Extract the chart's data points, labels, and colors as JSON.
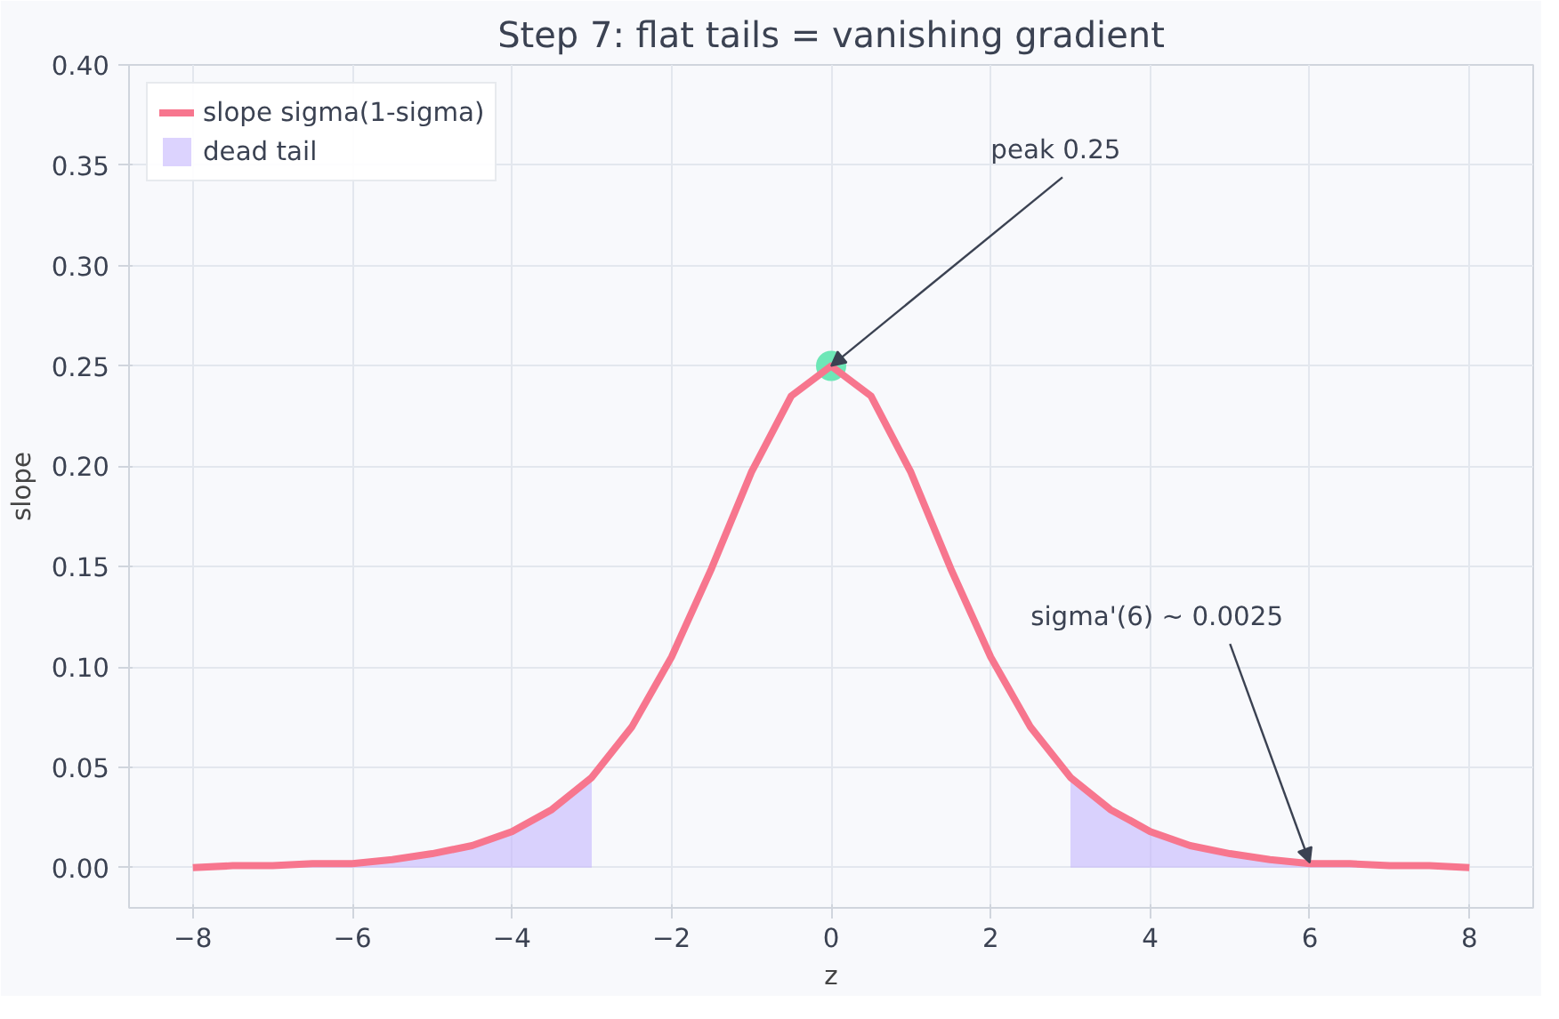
{
  "chart_data": {
    "type": "line",
    "title": "Step 7: flat tails = vanishing gradient",
    "xlabel": "z",
    "ylabel": "slope",
    "xlim": [
      -8.8,
      8.8
    ],
    "ylim": [
      -0.02,
      0.4
    ],
    "xticks": [
      {
        "value": -8,
        "label": "−8"
      },
      {
        "value": -6,
        "label": "−6"
      },
      {
        "value": -4,
        "label": "−4"
      },
      {
        "value": -2,
        "label": "−2"
      },
      0,
      2,
      4,
      6,
      8
    ],
    "yticks": [
      {
        "value": 0,
        "label": "0.00"
      },
      {
        "value": 0.05,
        "label": "0.05"
      },
      {
        "value": 0.1,
        "label": "0.10"
      },
      {
        "value": 0.15,
        "label": "0.15"
      },
      {
        "value": 0.2,
        "label": "0.20"
      },
      {
        "value": 0.25,
        "label": "0.25"
      },
      {
        "value": 0.3,
        "label": "0.30"
      },
      {
        "value": 0.35,
        "label": "0.35"
      },
      {
        "value": 0.4,
        "label": "0.40"
      }
    ],
    "grid": true,
    "legend": "top left",
    "series": [
      {
        "name": "slope sigma(1-sigma)",
        "color": "#f7768e",
        "x": [
          -8,
          -7.5,
          -7,
          -6.5,
          -6,
          -5.5,
          -5,
          -4.5,
          -4,
          -3.5,
          -3,
          -2.5,
          -2,
          -1.5,
          -1,
          -0.5,
          0,
          0.5,
          1,
          1.5,
          2,
          2.5,
          3,
          3.5,
          4,
          4.5,
          5,
          5.5,
          6,
          6.5,
          7,
          7.5,
          8
        ],
        "values": [
          0.0,
          0.001,
          0.001,
          0.002,
          0.002,
          0.004,
          0.007,
          0.011,
          0.018,
          0.029,
          0.045,
          0.07,
          0.105,
          0.149,
          0.197,
          0.235,
          0.25,
          0.235,
          0.197,
          0.149,
          0.105,
          0.07,
          0.045,
          0.029,
          0.018,
          0.011,
          0.007,
          0.004,
          0.002,
          0.002,
          0.001,
          0.001,
          0.0
        ]
      },
      {
        "type": "area",
        "name": "dead tail",
        "color": "#c4b5fd",
        "x": [
          -8,
          -7.5,
          -7,
          -6.5,
          -6,
          -5.5,
          -5,
          -4.5,
          -4,
          -3.5,
          -3
        ],
        "values": [
          0.0,
          0.001,
          0.001,
          0.002,
          0.002,
          0.004,
          0.007,
          0.011,
          0.018,
          0.029,
          0.045
        ]
      },
      {
        "type": "area",
        "color": "#c4b5fd",
        "x": [
          3,
          3.5,
          4,
          4.5,
          5,
          5.5,
          6,
          6.5,
          7,
          7.5,
          8
        ],
        "values": [
          0.045,
          0.029,
          0.018,
          0.011,
          0.007,
          0.004,
          0.002,
          0.002,
          0.001,
          0.001,
          0.0
        ]
      },
      {
        "type": "scatter",
        "color": "#6ee7b7",
        "x": [
          0
        ],
        "values": [
          0.25
        ]
      }
    ],
    "annotations": [
      {
        "text": "peak 0.25",
        "x": 0,
        "y": 0.25
      },
      {
        "text": "sigma'(6) ~ 0.0025",
        "x": 6,
        "y": 0.0025
      }
    ]
  }
}
